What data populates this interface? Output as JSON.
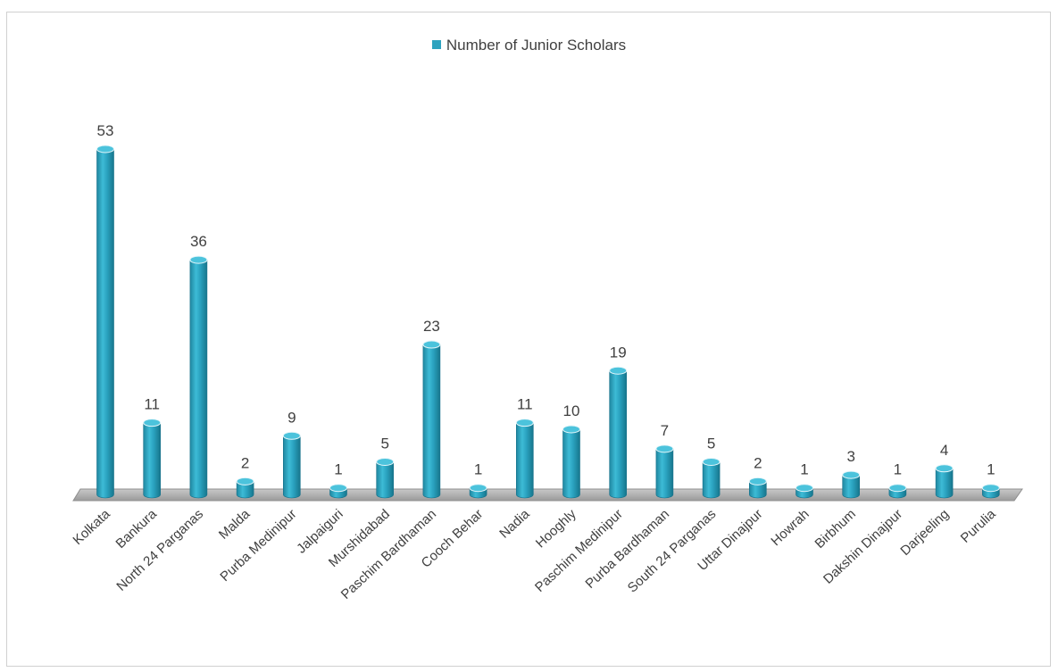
{
  "chart_data": {
    "type": "bar",
    "style": "3d-cylinder",
    "legend_position": "top",
    "grid": false,
    "ylim": [
      0,
      53
    ],
    "categories": [
      "Kolkata",
      "Bankura",
      "North 24 Parganas",
      "Malda",
      "Purba Medinipur",
      "Jalpaiguri",
      "Murshidabad",
      "Paschim Bardhaman",
      "Cooch Behar",
      "Nadia",
      "Hooghly",
      "Paschim Medinipur",
      "Purba Bardhaman",
      "South 24 Parganas",
      "Uttar Dinajpur",
      "Howrah",
      "Birbhum",
      "Dakshin Dinajpur",
      "Darjeeling",
      "Purulia"
    ],
    "series": [
      {
        "name": "Number of Junior Scholars",
        "color": "#2ea3bf",
        "values": [
          53,
          11,
          36,
          2,
          9,
          1,
          5,
          23,
          1,
          11,
          10,
          19,
          7,
          5,
          2,
          1,
          3,
          1,
          4,
          1
        ]
      }
    ]
  }
}
